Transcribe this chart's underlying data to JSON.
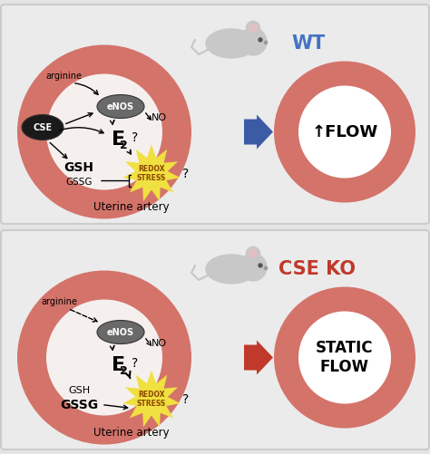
{
  "bg_color": "#e4e4e4",
  "artery_color": "#d4736a",
  "panel1": {
    "label": "WT",
    "label_color": "#4472c4",
    "arrow_color": "#3B5BA5",
    "flow_text": "↑FLOW"
  },
  "panel2": {
    "label": "CSE KO",
    "label_color": "#c0392b",
    "arrow_color": "#c0392b",
    "flow_text": "STATIC\nFLOW"
  }
}
